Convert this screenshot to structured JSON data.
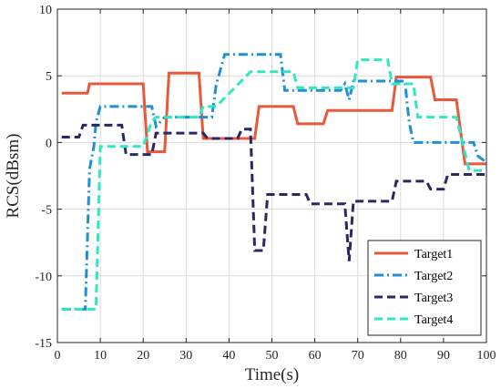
{
  "chart_data": {
    "type": "line",
    "xlabel": "Time(s)",
    "ylabel": "RCS(dBsm)",
    "xlim": [
      0,
      100
    ],
    "ylim": [
      -15,
      10
    ],
    "xticks": [
      0,
      10,
      20,
      30,
      40,
      50,
      60,
      70,
      80,
      90,
      100
    ],
    "yticks": [
      -15,
      -10,
      -5,
      0,
      5,
      10
    ],
    "xtick_labels": [
      "0",
      "10",
      "20",
      "30",
      "40",
      "50",
      "60",
      "70",
      "80",
      "90",
      "100"
    ],
    "ytick_labels": [
      "-15",
      "-10",
      "-5",
      "0",
      "5",
      "10"
    ],
    "grid": true,
    "legend_position": "bottom-right",
    "series": [
      {
        "name": "Target1",
        "color": "#e8583a",
        "style": "solid",
        "x": [
          1,
          7,
          7.5,
          20,
          21,
          25,
          26,
          33,
          34,
          46,
          47,
          51.5,
          52,
          55,
          56,
          62,
          63,
          78,
          79,
          87,
          88,
          92,
          93,
          95,
          96,
          100
        ],
        "y": [
          3.7,
          3.7,
          4.4,
          4.4,
          -0.7,
          -0.7,
          5.2,
          5.2,
          0.3,
          0.3,
          2.7,
          2.7,
          2.7,
          2.7,
          1.4,
          1.4,
          2.4,
          2.4,
          4.9,
          4.9,
          3.2,
          3.2,
          3.2,
          -1.6,
          -1.6,
          -1.6
        ]
      },
      {
        "name": "Target2",
        "color": "#1f8fd8",
        "style": "dashdot",
        "x": [
          1,
          6.5,
          7.5,
          8.5,
          9,
          10,
          22,
          23,
          25,
          36,
          37,
          39,
          40,
          52,
          53,
          66,
          67,
          68,
          69,
          81,
          82,
          83,
          97,
          98,
          100
        ],
        "y": [
          -12.5,
          -12.5,
          -2,
          -0.3,
          1.5,
          2.7,
          2.7,
          1.2,
          1.9,
          1.9,
          4.3,
          6.6,
          6.6,
          6.6,
          3.9,
          3.9,
          4.4,
          3.2,
          4.6,
          4.6,
          1.5,
          0,
          0,
          -1,
          -1.5
        ]
      },
      {
        "name": "Target3",
        "color": "#2a2763",
        "style": "dashed",
        "x": [
          1,
          5,
          6,
          15,
          16,
          22,
          23,
          34,
          35,
          42,
          43,
          45,
          46,
          47,
          48,
          49,
          50,
          58,
          59,
          66,
          67,
          68,
          69,
          78,
          79,
          86,
          87,
          90,
          91,
          100
        ],
        "y": [
          0.4,
          0.4,
          1.3,
          1.3,
          -0.9,
          -0.9,
          0.7,
          0.7,
          0.3,
          0.3,
          1.0,
          1.0,
          -8.1,
          -8.1,
          -8.1,
          -3.9,
          -3.9,
          -3.9,
          -4.6,
          -4.6,
          -4.6,
          -8.9,
          -4.4,
          -4.4,
          -2.9,
          -2.9,
          -3.5,
          -3.5,
          -2.4,
          -2.4
        ]
      },
      {
        "name": "Target4",
        "color": "#2ee8c0",
        "style": "dashed",
        "x": [
          1,
          9,
          10,
          20,
          22,
          23,
          33,
          34,
          37,
          45,
          46,
          55,
          56,
          69,
          70,
          77,
          78,
          83,
          84,
          92,
          93,
          96,
          97,
          100
        ],
        "y": [
          -12.5,
          -12.5,
          -0.3,
          -0.3,
          1.6,
          1.9,
          1.9,
          2.7,
          2.7,
          5.3,
          5.3,
          5.3,
          4.1,
          4.1,
          6.2,
          6.2,
          4.4,
          4.4,
          1.9,
          1.9,
          1.9,
          -2.1,
          -2.1,
          -2.1
        ]
      }
    ]
  }
}
